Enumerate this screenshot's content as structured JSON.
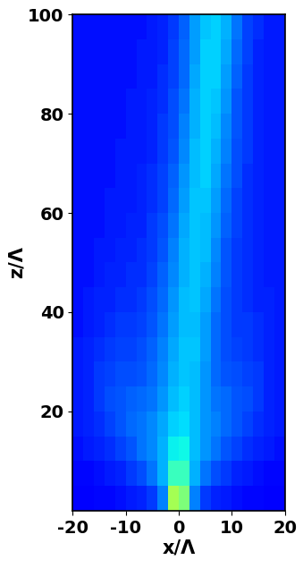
{
  "chart_data": {
    "type": "heatmap",
    "x_label": "x/Λ",
    "y_label": "z/Λ",
    "x": [
      -19,
      -17,
      -15,
      -13,
      -11,
      -9,
      -7,
      -5,
      -3,
      -1,
      1,
      3,
      5,
      7,
      9,
      11,
      13,
      15,
      17,
      19
    ],
    "y": [
      2.5,
      7.5,
      12.5,
      17.5,
      22.5,
      27.5,
      32.5,
      37.5,
      42.5,
      47.5,
      52.5,
      57.5,
      62.5,
      67.5,
      72.5,
      77.5,
      82.5,
      87.5,
      92.5,
      97.5
    ],
    "cells": [
      [
        0.12,
        0.12,
        0.13,
        0.13,
        0.14,
        0.15,
        0.16,
        0.18,
        0.25,
        0.55,
        0.5,
        0.25,
        0.18,
        0.16,
        0.15,
        0.14,
        0.13,
        0.13,
        0.12,
        0.12
      ],
      [
        0.13,
        0.13,
        0.14,
        0.15,
        0.16,
        0.18,
        0.2,
        0.24,
        0.3,
        0.42,
        0.42,
        0.3,
        0.24,
        0.2,
        0.18,
        0.16,
        0.15,
        0.14,
        0.13,
        0.13
      ],
      [
        0.14,
        0.15,
        0.16,
        0.17,
        0.19,
        0.21,
        0.24,
        0.26,
        0.3,
        0.36,
        0.37,
        0.31,
        0.27,
        0.24,
        0.21,
        0.19,
        0.17,
        0.16,
        0.15,
        0.14
      ],
      [
        0.15,
        0.16,
        0.17,
        0.19,
        0.21,
        0.23,
        0.24,
        0.26,
        0.29,
        0.33,
        0.34,
        0.31,
        0.27,
        0.25,
        0.23,
        0.21,
        0.19,
        0.17,
        0.16,
        0.15
      ],
      [
        0.15,
        0.16,
        0.18,
        0.2,
        0.21,
        0.22,
        0.23,
        0.24,
        0.27,
        0.31,
        0.33,
        0.31,
        0.27,
        0.24,
        0.23,
        0.21,
        0.2,
        0.18,
        0.16,
        0.15
      ],
      [
        0.15,
        0.16,
        0.18,
        0.19,
        0.2,
        0.2,
        0.21,
        0.23,
        0.26,
        0.3,
        0.32,
        0.31,
        0.27,
        0.23,
        0.21,
        0.2,
        0.19,
        0.18,
        0.16,
        0.15
      ],
      [
        0.15,
        0.16,
        0.17,
        0.18,
        0.19,
        0.19,
        0.2,
        0.22,
        0.25,
        0.29,
        0.32,
        0.32,
        0.28,
        0.23,
        0.2,
        0.19,
        0.18,
        0.17,
        0.16,
        0.15
      ],
      [
        0.14,
        0.15,
        0.16,
        0.17,
        0.18,
        0.18,
        0.19,
        0.21,
        0.24,
        0.28,
        0.31,
        0.31,
        0.28,
        0.23,
        0.2,
        0.18,
        0.18,
        0.17,
        0.16,
        0.15
      ],
      [
        0.14,
        0.15,
        0.16,
        0.16,
        0.17,
        0.17,
        0.18,
        0.2,
        0.23,
        0.27,
        0.31,
        0.32,
        0.29,
        0.24,
        0.2,
        0.18,
        0.17,
        0.16,
        0.16,
        0.15
      ],
      [
        0.14,
        0.14,
        0.15,
        0.16,
        0.16,
        0.17,
        0.17,
        0.19,
        0.22,
        0.26,
        0.3,
        0.32,
        0.3,
        0.25,
        0.21,
        0.18,
        0.17,
        0.16,
        0.15,
        0.15
      ],
      [
        0.14,
        0.14,
        0.15,
        0.15,
        0.16,
        0.16,
        0.17,
        0.18,
        0.21,
        0.25,
        0.3,
        0.32,
        0.31,
        0.26,
        0.21,
        0.18,
        0.17,
        0.16,
        0.15,
        0.15
      ],
      [
        0.14,
        0.14,
        0.14,
        0.15,
        0.15,
        0.16,
        0.16,
        0.18,
        0.2,
        0.24,
        0.29,
        0.32,
        0.31,
        0.27,
        0.22,
        0.19,
        0.17,
        0.16,
        0.15,
        0.15
      ],
      [
        0.14,
        0.14,
        0.14,
        0.15,
        0.15,
        0.15,
        0.16,
        0.17,
        0.19,
        0.23,
        0.28,
        0.32,
        0.32,
        0.28,
        0.23,
        0.19,
        0.17,
        0.16,
        0.15,
        0.15
      ],
      [
        0.14,
        0.14,
        0.14,
        0.14,
        0.15,
        0.15,
        0.16,
        0.17,
        0.19,
        0.22,
        0.27,
        0.31,
        0.33,
        0.29,
        0.24,
        0.2,
        0.17,
        0.16,
        0.15,
        0.15
      ],
      [
        0.14,
        0.14,
        0.14,
        0.14,
        0.15,
        0.15,
        0.15,
        0.16,
        0.18,
        0.21,
        0.26,
        0.31,
        0.33,
        0.3,
        0.25,
        0.2,
        0.18,
        0.16,
        0.15,
        0.15
      ],
      [
        0.14,
        0.14,
        0.14,
        0.14,
        0.14,
        0.15,
        0.15,
        0.16,
        0.18,
        0.2,
        0.25,
        0.3,
        0.33,
        0.31,
        0.26,
        0.21,
        0.18,
        0.16,
        0.15,
        0.15
      ],
      [
        0.14,
        0.14,
        0.14,
        0.14,
        0.14,
        0.15,
        0.15,
        0.16,
        0.17,
        0.2,
        0.24,
        0.3,
        0.33,
        0.32,
        0.27,
        0.21,
        0.18,
        0.16,
        0.15,
        0.15
      ],
      [
        0.14,
        0.14,
        0.14,
        0.14,
        0.14,
        0.14,
        0.15,
        0.15,
        0.17,
        0.19,
        0.23,
        0.29,
        0.33,
        0.33,
        0.28,
        0.22,
        0.18,
        0.16,
        0.15,
        0.15
      ],
      [
        0.14,
        0.14,
        0.14,
        0.14,
        0.14,
        0.14,
        0.15,
        0.15,
        0.16,
        0.19,
        0.23,
        0.28,
        0.33,
        0.33,
        0.29,
        0.23,
        0.19,
        0.16,
        0.15,
        0.15
      ],
      [
        0.14,
        0.14,
        0.14,
        0.14,
        0.14,
        0.14,
        0.14,
        0.15,
        0.16,
        0.18,
        0.22,
        0.28,
        0.32,
        0.33,
        0.3,
        0.24,
        0.19,
        0.17,
        0.15,
        0.15
      ]
    ],
    "zlim": [
      0,
      1
    ],
    "xlim": [
      -20,
      20
    ],
    "xticks": [
      -20,
      -10,
      0,
      10,
      20
    ],
    "ylim": [
      0,
      100
    ],
    "yticks": [
      20,
      40,
      60,
      80,
      100
    ],
    "grid": false
  }
}
